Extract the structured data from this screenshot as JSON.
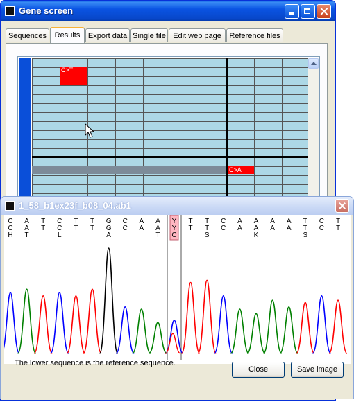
{
  "main_window": {
    "title": "Gene screen",
    "tabs": [
      {
        "label": "Sequences",
        "active": false
      },
      {
        "label": "Results",
        "active": true
      },
      {
        "label": "Export data",
        "active": false
      },
      {
        "label": "Single file",
        "active": false
      },
      {
        "label": "Edit web page",
        "active": false
      },
      {
        "label": "Reference files",
        "active": false
      }
    ],
    "results_grid": {
      "highlight_cell_1": "C>T",
      "highlight_cell_2": "C>A",
      "highlight_color": "#ff0000",
      "cell_color": "#add8e6",
      "selected_row_color": "#7d8b99"
    }
  },
  "trace_window": {
    "title": "1_58_b1ex23f_b08_04.ab1",
    "upper_sequence": [
      "C",
      "A",
      "T",
      "C",
      "T",
      "T",
      "G",
      "C",
      "A",
      "A",
      "Y",
      "T",
      "T",
      "C",
      "A",
      "A",
      "A",
      "A",
      "T",
      "C",
      "T"
    ],
    "lower_sequence": [
      "H",
      "T",
      "",
      "L",
      "",
      "",
      "A",
      "",
      "",
      "T",
      "C",
      "",
      "S",
      "",
      "",
      "K",
      "",
      "",
      "S",
      "",
      ""
    ],
    "highlighted_base": "Y",
    "trace_colors": {
      "A": "#008000",
      "C": "#0000ff",
      "G": "#000000",
      "T": "#ff0000"
    },
    "footer_note": "The lower sequence is the reference sequence.",
    "close_button": "Close",
    "save_button": "Save image"
  }
}
